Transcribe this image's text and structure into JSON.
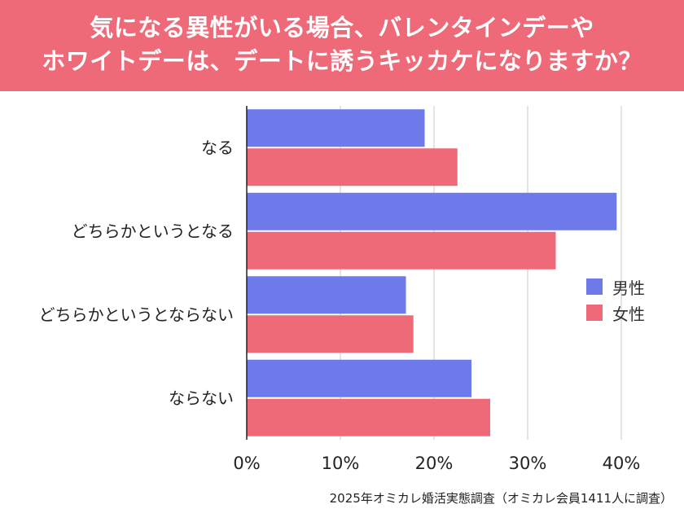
{
  "title": {
    "line1": "気になる異性がいる場合、バレンタインデーや",
    "line2": "ホワイトデーは、デートに誘うキッカケになりますか？"
  },
  "colors": {
    "banner": "#ee6a78",
    "male": "#6e79ea",
    "female": "#ee6a78",
    "grid": "#c8c8c8",
    "axis": "#222222"
  },
  "footnote": "2025年オミカレ婚活実態調査（オミカレ会員1411人に調査）",
  "chart_data": {
    "type": "bar",
    "orientation": "horizontal",
    "title": "気になる異性がいる場合、バレンタインデーやホワイトデーは、デートに誘うキッカケになりますか？",
    "categories": [
      "なる",
      "どちらかというとなる",
      "どちらかというとならない",
      "ならない"
    ],
    "series": [
      {
        "name": "男性",
        "values": [
          19.0,
          39.5,
          17.0,
          24.0
        ]
      },
      {
        "name": "女性",
        "values": [
          22.5,
          33.0,
          17.8,
          26.0
        ]
      }
    ],
    "xlim": [
      0,
      40
    ],
    "xticks": [
      0,
      10,
      20,
      30,
      40
    ],
    "xtick_labels": [
      "0%",
      "10%",
      "20%",
      "30%",
      "40%"
    ],
    "xlabel": "",
    "ylabel": "",
    "grid": true,
    "legend": "right"
  }
}
